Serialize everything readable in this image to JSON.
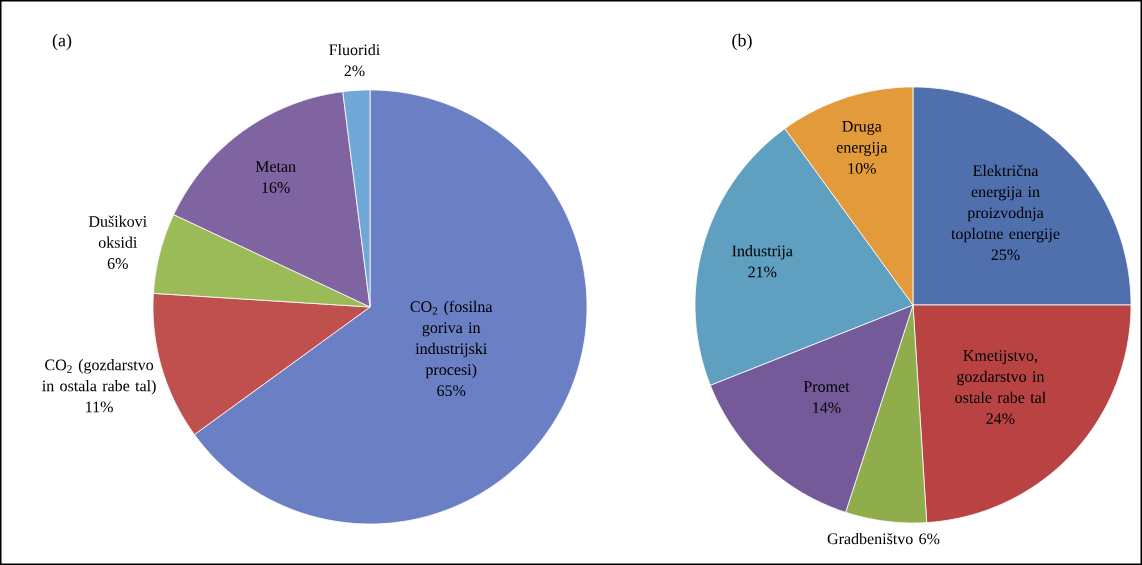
{
  "chart_data": [
    {
      "type": "pie",
      "title": "(a)",
      "categories": [
        "CO$_{2}$ (fosilna goriva in industrijski procesi)",
        "CO$_{2}$ (gozdarstvo in ostala rabe tal)",
        "Dušikovi oksidi",
        "Metan",
        "Fluoridi"
      ],
      "values": [
        65,
        11,
        6,
        16,
        2
      ],
      "value_labels": [
        "65%",
        "11%",
        "6%",
        "16%",
        "2%"
      ],
      "colors": [
        "#6a7fc4",
        "#c0504d",
        "#9bbb59",
        "#8064a2",
        "#6fa8d6"
      ]
    },
    {
      "type": "pie",
      "title": "(b)",
      "categories": [
        "Električna energija in proizvodnja toplotne energije",
        "Kmetijstvo, gozdarstvo in ostale rabe tal",
        "Gradbeništvo",
        "Promet",
        "Industrija",
        "Druga energija"
      ],
      "values": [
        25,
        24,
        6,
        14,
        21,
        10
      ],
      "value_labels": [
        "25%",
        "24%",
        "6%",
        "14%",
        "21%",
        "10%"
      ],
      "colors": [
        "#4f6fad",
        "#b94343",
        "#8fad4a",
        "#745a99",
        "#5f9fc0",
        "#e39a3b"
      ]
    }
  ]
}
